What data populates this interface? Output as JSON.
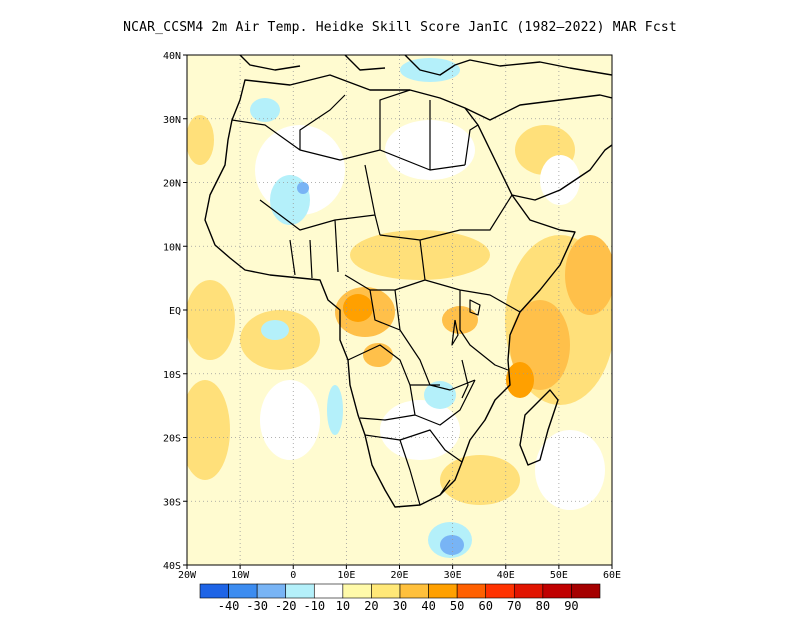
{
  "title": "NCAR_CCSM4  2m Air Temp. Heidke Skill Score JanIC (1982–2022) MAR Fcst",
  "map": {
    "lon_range": [
      -20,
      60
    ],
    "lat_range": [
      -40,
      40
    ],
    "x_ticks": [
      {
        "lon": -20,
        "label": "20W"
      },
      {
        "lon": -10,
        "label": "10W"
      },
      {
        "lon": 0,
        "label": "0"
      },
      {
        "lon": 10,
        "label": "10E"
      },
      {
        "lon": 20,
        "label": "20E"
      },
      {
        "lon": 30,
        "label": "30E"
      },
      {
        "lon": 40,
        "label": "40E"
      },
      {
        "lon": 50,
        "label": "50E"
      },
      {
        "lon": 60,
        "label": "60E"
      }
    ],
    "y_ticks": [
      {
        "lat": 40,
        "label": "40N"
      },
      {
        "lat": 30,
        "label": "30N"
      },
      {
        "lat": 20,
        "label": "20N"
      },
      {
        "lat": 10,
        "label": "10N"
      },
      {
        "lat": 0,
        "label": "EQ"
      },
      {
        "lat": -10,
        "label": "10S"
      },
      {
        "lat": -20,
        "label": "20S"
      },
      {
        "lat": -30,
        "label": "30S"
      },
      {
        "lat": -40,
        "label": "40S"
      }
    ],
    "grid": true
  },
  "colorbar": {
    "colors": [
      "#1e64e6",
      "#3c8cf0",
      "#78b4f5",
      "#b4f0fa",
      "#ffffff",
      "#fffaaa",
      "#ffe878",
      "#ffc03c",
      "#ffa000",
      "#ff6000",
      "#ff3200",
      "#e11400",
      "#c00000",
      "#a50000"
    ],
    "labels": [
      "-40",
      "-30",
      "-20",
      "-10",
      "10",
      "20",
      "30",
      "40",
      "50",
      "60",
      "70",
      "80",
      "90"
    ]
  }
}
